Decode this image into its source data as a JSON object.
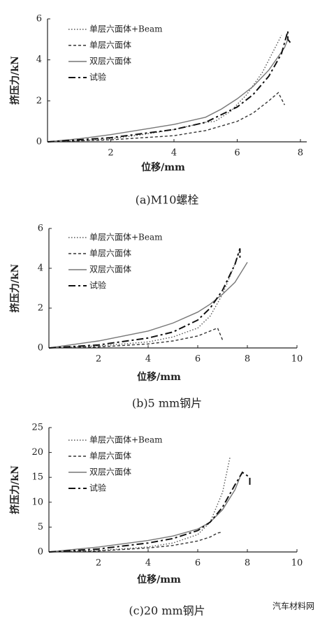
{
  "watermark": "汽车材料网",
  "chart_data": [
    {
      "type": "line",
      "caption": "(a)M10螺栓",
      "x_label": "位移/mm",
      "y_label": "挤压力/kN",
      "xlim": [
        0,
        8.2
      ],
      "ylim": [
        0,
        6
      ],
      "xticks": [
        2,
        4,
        6,
        8
      ],
      "yticks": [
        0,
        2,
        4,
        6
      ],
      "series": [
        {
          "name": "单层六面体+Beam",
          "color": "#555555",
          "style": "dotted",
          "x": [
            0,
            1,
            2,
            3,
            4,
            5,
            5.3,
            5.8,
            6.3,
            6.8,
            7.2,
            7.4
          ],
          "values": [
            0,
            0.05,
            0.15,
            0.35,
            0.6,
            0.95,
            1.0,
            1.5,
            2.3,
            3.4,
            4.6,
            5.2
          ]
        },
        {
          "name": "单层六面体",
          "color": "#333333",
          "style": "dashed",
          "x": [
            0,
            2,
            4,
            5,
            6,
            6.5,
            7,
            7.3,
            7.5
          ],
          "values": [
            0,
            0.1,
            0.3,
            0.55,
            1.0,
            1.4,
            2.0,
            2.4,
            1.8
          ]
        },
        {
          "name": "双层六面体",
          "color": "#777777",
          "style": "solid",
          "x": [
            0,
            1,
            2,
            3,
            4,
            5,
            5.5,
            6,
            6.5,
            7,
            7.5,
            7.6
          ],
          "values": [
            0,
            0.15,
            0.35,
            0.6,
            0.85,
            1.2,
            1.6,
            2.1,
            2.7,
            3.5,
            4.6,
            5.0
          ]
        },
        {
          "name": "试验",
          "color": "#111111",
          "style": "longdash",
          "x": [
            0,
            2,
            4,
            5,
            6,
            6.5,
            7,
            7.4,
            7.6,
            7.6,
            7.7
          ],
          "values": [
            0,
            0.2,
            0.6,
            0.95,
            1.7,
            2.3,
            3.2,
            4.3,
            5.4,
            5.0,
            4.8
          ]
        }
      ]
    },
    {
      "type": "line",
      "caption": "(b)5 mm钢片",
      "x_label": "位移/mm",
      "y_label": "挤压力/kN",
      "xlim": [
        0,
        10
      ],
      "ylim": [
        0,
        6
      ],
      "xticks": [
        2,
        4,
        6,
        8,
        10
      ],
      "yticks": [
        0,
        2,
        4,
        6
      ],
      "series": [
        {
          "name": "单层六面体+Beam",
          "color": "#555555",
          "style": "dotted",
          "x": [
            0,
            2,
            4,
            5,
            6,
            6.5,
            7,
            7.4,
            7.7
          ],
          "values": [
            0,
            0.1,
            0.3,
            0.55,
            1.0,
            1.6,
            2.7,
            3.9,
            4.9
          ]
        },
        {
          "name": "单层六面体",
          "color": "#333333",
          "style": "dashed",
          "x": [
            0,
            2,
            4,
            5,
            6,
            6.5,
            6.8,
            7.0
          ],
          "values": [
            0,
            0.05,
            0.2,
            0.35,
            0.6,
            0.85,
            1.0,
            0.4
          ]
        },
        {
          "name": "双层六面体",
          "color": "#777777",
          "style": "solid",
          "x": [
            0,
            2,
            4,
            5,
            6,
            6.5,
            7,
            7.5,
            8
          ],
          "values": [
            0,
            0.35,
            0.85,
            1.25,
            1.8,
            2.2,
            2.7,
            3.3,
            4.3
          ]
        },
        {
          "name": "试验",
          "color": "#111111",
          "style": "longdash",
          "x": [
            0,
            2,
            4,
            5,
            6,
            6.5,
            7,
            7.5,
            7.7,
            7.7
          ],
          "values": [
            0,
            0.15,
            0.5,
            0.8,
            1.4,
            2.0,
            2.9,
            4.2,
            5.0,
            4.5
          ]
        }
      ]
    },
    {
      "type": "line",
      "caption": "(c)20 mm钢片",
      "x_label": "位移/mm",
      "y_label": "挤压力/kN",
      "xlim": [
        0,
        10
      ],
      "ylim": [
        0,
        25
      ],
      "xticks": [
        2,
        4,
        6,
        8,
        10
      ],
      "yticks": [
        0,
        5,
        10,
        15,
        20,
        25
      ],
      "series": [
        {
          "name": "单层六面体+Beam",
          "color": "#555555",
          "style": "dotted",
          "x": [
            0,
            2,
            4,
            5,
            6,
            6.5,
            7,
            7.3
          ],
          "values": [
            0,
            0.3,
            1.0,
            1.8,
            3.5,
            6.0,
            12.0,
            19.0
          ]
        },
        {
          "name": "单层六面体",
          "color": "#333333",
          "style": "dashed",
          "x": [
            0,
            2,
            4,
            5,
            6,
            6.5,
            6.8,
            7.0
          ],
          "values": [
            0,
            0.2,
            0.8,
            1.3,
            2.2,
            3.0,
            3.8,
            4.0
          ]
        },
        {
          "name": "双层六面体",
          "color": "#777777",
          "style": "solid",
          "x": [
            0,
            2,
            4,
            5,
            6,
            6.5,
            7,
            7.5,
            7.7
          ],
          "values": [
            0,
            1.0,
            2.3,
            3.2,
            4.6,
            6.0,
            8.5,
            12.5,
            15.0
          ]
        },
        {
          "name": "试验",
          "color": "#111111",
          "style": "longdash",
          "x": [
            0,
            2,
            4,
            5,
            6,
            6.5,
            7,
            7.5,
            7.8,
            8.1,
            8.1
          ],
          "values": [
            0,
            0.6,
            1.8,
            2.7,
            4.3,
            6.0,
            9.0,
            13.5,
            16.0,
            15.0,
            13.0
          ]
        }
      ]
    }
  ]
}
